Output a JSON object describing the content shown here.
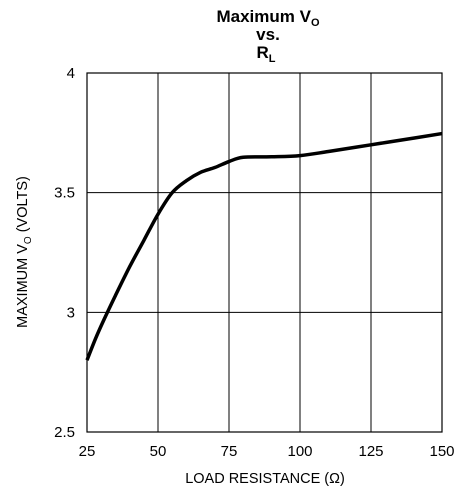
{
  "chart_data": {
    "type": "line",
    "title": {
      "line1": "Maximum V",
      "line1_sub": "O",
      "line2": "vs.",
      "line3": "R",
      "line3_sub": "L"
    },
    "xlabel": "LOAD RESISTANCE (Ω)",
    "ylabel": {
      "main": "MAXIMUM V",
      "sub": "O",
      "tail": " (VOLTS)"
    },
    "xlim": [
      25,
      150
    ],
    "ylim": [
      2.5,
      4
    ],
    "x_ticks": [
      "25",
      "50",
      "75",
      "100",
      "125",
      "150"
    ],
    "y_ticks": [
      "2.5",
      "3",
      "3.5",
      "4"
    ],
    "grid": true,
    "series": [
      {
        "color": "#000000",
        "x": [
          25,
          28,
          31,
          35,
          40,
          45,
          50,
          55,
          60,
          65,
          70,
          75,
          80,
          90,
          100,
          110,
          125,
          140,
          150
        ],
        "y": [
          2.8,
          2.89,
          2.97,
          3.07,
          3.19,
          3.3,
          3.41,
          3.5,
          3.55,
          3.585,
          3.605,
          3.63,
          3.648,
          3.65,
          3.655,
          3.672,
          3.7,
          3.728,
          3.747
        ]
      }
    ]
  }
}
